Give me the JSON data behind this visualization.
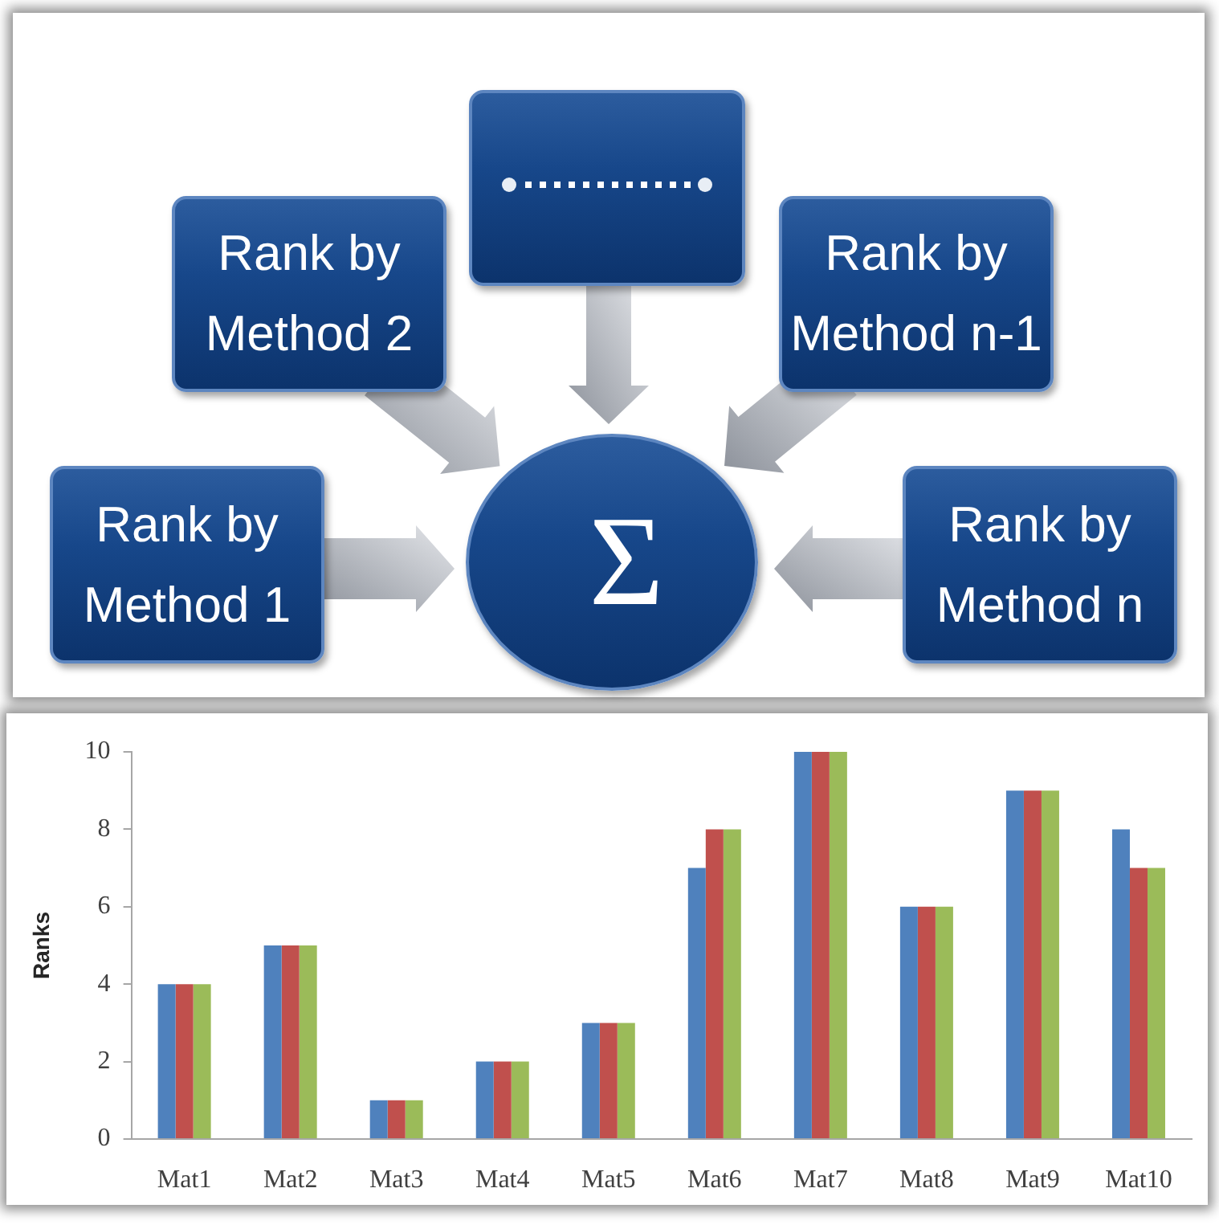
{
  "chart_data": [
    {
      "type": "other",
      "annotations": [
        "Rank by Method 1",
        "Rank by Method 2",
        "Rank by Method n-1",
        "Rank by Method n",
        "Σ"
      ]
    },
    {
      "type": "bar",
      "categories": [
        "Mat1",
        "Mat2",
        "Mat3",
        "Mat4",
        "Mat5",
        "Mat6",
        "Mat7",
        "Mat8",
        "Mat9",
        "Mat10"
      ],
      "series": [
        {
          "color": "#4f81bd",
          "values": [
            4,
            5,
            1,
            2,
            3,
            7,
            10,
            6,
            9,
            8
          ]
        },
        {
          "color": "#c0504d",
          "values": [
            4,
            5,
            1,
            2,
            3,
            8,
            10,
            6,
            9,
            7
          ]
        },
        {
          "color": "#9bbb59",
          "values": [
            4,
            5,
            1,
            2,
            3,
            8,
            10,
            6,
            9,
            7
          ]
        }
      ],
      "ylabel": "Ranks",
      "ylim": [
        0,
        10
      ],
      "yticks": [
        0,
        2,
        4,
        6,
        8,
        10
      ]
    }
  ]
}
